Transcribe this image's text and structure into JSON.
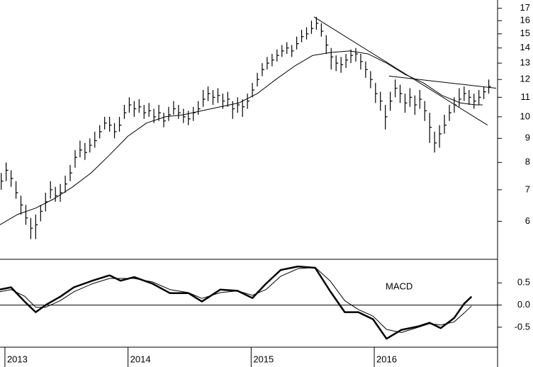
{
  "chart_data": [
    {
      "type": "ohlc",
      "log_scale": true,
      "color": "#000000",
      "x": [
        2012.97,
        2013.01,
        2013.05,
        2013.09,
        2013.13,
        2013.17,
        2013.21,
        2013.25,
        2013.29,
        2013.33,
        2013.37,
        2013.41,
        2013.45,
        2013.49,
        2013.53,
        2013.57,
        2013.61,
        2013.65,
        2013.69,
        2013.73,
        2013.77,
        2013.81,
        2013.85,
        2013.89,
        2013.93,
        2013.97,
        2014.01,
        2014.05,
        2014.09,
        2014.13,
        2014.17,
        2014.21,
        2014.25,
        2014.29,
        2014.33,
        2014.37,
        2014.41,
        2014.45,
        2014.49,
        2014.53,
        2014.57,
        2014.61,
        2014.65,
        2014.69,
        2014.73,
        2014.77,
        2014.81,
        2014.85,
        2014.89,
        2014.93,
        2014.97,
        2015.01,
        2015.05,
        2015.09,
        2015.13,
        2015.17,
        2015.21,
        2015.25,
        2015.29,
        2015.33,
        2015.37,
        2015.41,
        2015.45,
        2015.49,
        2015.53,
        2015.57,
        2015.61,
        2015.65,
        2015.69,
        2015.73,
        2015.77,
        2015.81,
        2015.85,
        2015.89,
        2015.93,
        2015.97,
        2016.01,
        2016.05,
        2016.09,
        2016.13,
        2016.17,
        2016.21,
        2016.25,
        2016.29,
        2016.33,
        2016.37,
        2016.41,
        2016.45,
        2016.49,
        2016.53,
        2016.57,
        2016.61,
        2016.65,
        2016.69,
        2016.73,
        2016.77,
        2016.81,
        2016.85,
        2016.89,
        2016.93
      ],
      "high": [
        7.6,
        8.0,
        7.7,
        7.3,
        6.8,
        6.5,
        6.1,
        6.2,
        6.5,
        6.9,
        7.3,
        7.1,
        7.2,
        7.5,
        7.9,
        8.5,
        8.9,
        8.8,
        9.0,
        9.3,
        9.6,
        10.0,
        10.0,
        9.7,
        10.0,
        10.6,
        11.0,
        10.8,
        10.9,
        10.6,
        10.7,
        10.4,
        10.6,
        10.2,
        10.5,
        10.8,
        10.6,
        10.4,
        10.3,
        10.5,
        10.8,
        11.4,
        11.6,
        11.4,
        11.5,
        11.2,
        11.3,
        10.8,
        11.0,
        10.9,
        11.2,
        11.8,
        12.4,
        13.0,
        13.4,
        13.6,
        13.9,
        14.2,
        14.4,
        14.2,
        14.8,
        15.3,
        15.5,
        16.0,
        16.3,
        15.8,
        14.9,
        14.0,
        13.5,
        13.4,
        13.6,
        13.9,
        14.0,
        13.6,
        13.1,
        12.5,
        11.8,
        11.3,
        10.6,
        11.3,
        12.0,
        11.7,
        11.2,
        11.5,
        11.1,
        11.4,
        10.8,
        10.2,
        9.3,
        9.6,
        10.1,
        10.6,
        11.0,
        11.5,
        11.6,
        11.4,
        11.2,
        11.4,
        11.6,
        12.0
      ],
      "low": [
        7.0,
        7.3,
        7.1,
        6.7,
        6.2,
        5.9,
        5.5,
        5.5,
        6.0,
        6.3,
        6.7,
        6.6,
        6.6,
        6.9,
        7.3,
        7.8,
        8.2,
        8.1,
        8.4,
        8.6,
        9.0,
        9.4,
        9.3,
        9.0,
        9.3,
        9.9,
        10.2,
        10.0,
        10.2,
        9.9,
        10.0,
        9.7,
        9.8,
        9.5,
        9.8,
        10.1,
        9.9,
        9.7,
        9.6,
        9.8,
        10.1,
        10.5,
        10.8,
        10.6,
        10.7,
        10.4,
        10.5,
        9.9,
        10.2,
        10.0,
        10.4,
        11.0,
        11.6,
        12.2,
        12.6,
        12.8,
        13.1,
        13.4,
        13.6,
        13.4,
        13.9,
        14.4,
        14.6,
        15.0,
        15.3,
        14.8,
        13.6,
        12.6,
        12.5,
        12.4,
        12.7,
        13.0,
        13.1,
        12.6,
        12.1,
        11.5,
        10.7,
        10.3,
        9.4,
        10.3,
        11.0,
        10.7,
        10.2,
        10.5,
        10.1,
        10.4,
        9.8,
        8.8,
        8.4,
        8.6,
        9.2,
        9.8,
        10.2,
        10.5,
        10.8,
        10.6,
        10.4,
        10.6,
        10.9,
        11.2
      ],
      "close": [
        7.3,
        7.7,
        7.4,
        6.9,
        6.5,
        6.1,
        5.8,
        5.9,
        6.3,
        6.6,
        7.0,
        6.8,
        6.9,
        7.2,
        7.6,
        8.2,
        8.5,
        8.4,
        8.7,
        8.9,
        9.3,
        9.7,
        9.6,
        9.3,
        9.6,
        10.2,
        10.6,
        10.4,
        10.5,
        10.2,
        10.3,
        10.0,
        10.2,
        9.8,
        10.1,
        10.4,
        10.2,
        10.0,
        9.9,
        10.2,
        10.4,
        10.9,
        11.2,
        11.0,
        11.1,
        10.8,
        10.9,
        10.4,
        10.6,
        10.5,
        10.8,
        11.4,
        12.0,
        12.6,
        13.0,
        13.2,
        13.5,
        13.8,
        14.0,
        13.8,
        14.3,
        14.8,
        15.0,
        15.4,
        15.8,
        15.2,
        14.2,
        13.4,
        13.0,
        12.9,
        13.2,
        13.5,
        13.6,
        13.1,
        12.6,
        12.0,
        11.2,
        10.8,
        10.0,
        10.8,
        11.5,
        11.2,
        10.7,
        11.0,
        10.6,
        10.9,
        10.3,
        9.5,
        8.8,
        9.2,
        9.6,
        10.2,
        10.6,
        10.9,
        11.2,
        11.0,
        10.8,
        11.0,
        11.3,
        11.6
      ],
      "moving_average": {
        "x": [
          2012.96,
          2013.1,
          2013.25,
          2013.4,
          2013.55,
          2013.7,
          2013.85,
          2014.0,
          2014.15,
          2014.3,
          2014.45,
          2014.6,
          2014.75,
          2014.9,
          2015.05,
          2015.2,
          2015.35,
          2015.5,
          2015.65,
          2015.8,
          2015.95,
          2016.1,
          2016.25,
          2016.4,
          2016.55,
          2016.7,
          2016.82,
          2016.88
        ],
        "values": [
          5.9,
          6.2,
          6.4,
          6.7,
          7.1,
          7.6,
          8.3,
          9.1,
          9.7,
          10.0,
          10.1,
          10.3,
          10.5,
          10.7,
          11.2,
          12.0,
          12.8,
          13.5,
          13.7,
          13.8,
          13.6,
          13.0,
          12.3,
          11.8,
          11.1,
          10.7,
          10.6,
          10.6
        ]
      },
      "trendlines": [
        {
          "x": [
            2015.51,
            2016.92
          ],
          "values": [
            16.3,
            9.6
          ]
        },
        {
          "x": [
            2016.12,
            2016.99
          ],
          "values": [
            12.2,
            11.5
          ]
        }
      ],
      "ylim": [
        5,
        17.7
      ],
      "yticks": [
        6,
        7,
        8,
        9,
        10,
        11,
        12,
        13,
        14,
        15,
        16,
        17
      ],
      "xlim": [
        2012.96,
        2016.99
      ]
    },
    {
      "type": "line",
      "annotation": "MACD",
      "zero_line": true,
      "series": [
        {
          "color": "#000000",
          "line_width": 2.5,
          "x": [
            2012.96,
            2013.05,
            2013.16,
            2013.25,
            2013.33,
            2013.45,
            2013.56,
            2013.71,
            2013.85,
            2013.94,
            2014.05,
            2014.2,
            2014.34,
            2014.49,
            2014.6,
            2014.75,
            2014.89,
            2015.01,
            2015.12,
            2015.24,
            2015.38,
            2015.52,
            2015.64,
            2015.76,
            2015.87,
            2015.99,
            2016.1,
            2016.22,
            2016.36,
            2016.45,
            2016.54,
            2016.65,
            2016.73,
            2016.79
          ],
          "values": [
            0.35,
            0.4,
            0.08,
            -0.16,
            0,
            0.19,
            0.4,
            0.55,
            0.67,
            0.55,
            0.63,
            0.48,
            0.27,
            0.27,
            0.08,
            0.35,
            0.32,
            0.16,
            0.48,
            0.79,
            0.87,
            0.84,
            0.32,
            -0.16,
            -0.16,
            -0.32,
            -0.76,
            -0.56,
            -0.48,
            -0.4,
            -0.52,
            -0.29,
            0.03,
            0.19
          ]
        },
        {
          "color": "#000000",
          "line_width": 1,
          "x": [
            2012.96,
            2013.05,
            2013.16,
            2013.25,
            2013.33,
            2013.45,
            2013.56,
            2013.71,
            2013.85,
            2013.94,
            2014.05,
            2014.2,
            2014.34,
            2014.49,
            2014.6,
            2014.75,
            2014.89,
            2015.01,
            2015.12,
            2015.24,
            2015.38,
            2015.52,
            2015.64,
            2015.76,
            2015.87,
            2015.99,
            2016.1,
            2016.22,
            2016.36,
            2016.45,
            2016.54,
            2016.65,
            2016.73,
            2016.79
          ],
          "values": [
            0.3,
            0.35,
            0.2,
            -0.05,
            -0.05,
            0.1,
            0.3,
            0.48,
            0.6,
            0.6,
            0.6,
            0.52,
            0.35,
            0.28,
            0.15,
            0.28,
            0.32,
            0.22,
            0.35,
            0.65,
            0.82,
            0.85,
            0.55,
            0.1,
            -0.1,
            -0.25,
            -0.55,
            -0.62,
            -0.5,
            -0.42,
            -0.45,
            -0.38,
            -0.18,
            -0.02
          ]
        }
      ],
      "ylim": [
        -0.95,
        1.0
      ],
      "yticks": [
        0.5,
        {
          "value": 0,
          "label": "0.0"
        },
        -0.5
      ],
      "xlim": [
        2012.96,
        2016.99
      ],
      "xticks": [
        2013,
        2014,
        2015,
        2016
      ]
    }
  ]
}
